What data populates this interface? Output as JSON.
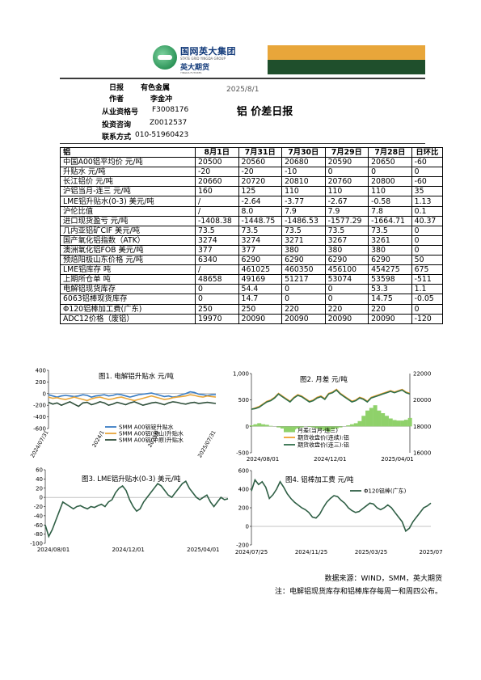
{
  "header": {
    "logo_cn": "国网英大集团",
    "logo_en": "STATE GRID YINGDA GROUP",
    "logo_sub_cn": "英大期货",
    "logo_sub_en": "YINGDA FUTURES",
    "accent_top": "#e8a63a",
    "accent_bottom": "#1f4f2c"
  },
  "meta": {
    "report_label": "日报",
    "category": "有色金属",
    "author_label": "作者",
    "author": "李金冲",
    "license_label": "从业资格号",
    "license": "F3008176",
    "invest_label": "投资咨询",
    "invest": "Z0012537",
    "contact_label": "联系方式",
    "contact": "010-51960423",
    "date": "2025/8/1",
    "title": "铝 价差日报"
  },
  "table": {
    "headers": [
      "铝",
      "8月1日",
      "7月31日",
      "7月30日",
      "7月29日",
      "7月28日",
      "日环比"
    ],
    "rows": [
      [
        "中国A00铝平均价 元/吨",
        "20500",
        "20560",
        "20680",
        "20590",
        "20650",
        "-60"
      ],
      [
        "升贴水 元/吨",
        "-20",
        "-20",
        "-10",
        "0",
        "0",
        "0"
      ],
      [
        "长江铝价 元/吨",
        "20660",
        "20720",
        "20810",
        "20760",
        "20800",
        "-60"
      ],
      [
        "沪铝当月-连三 元/吨",
        "160",
        "125",
        "110",
        "110",
        "110",
        "35"
      ],
      [
        "LME铝升贴水(0-3) 美元/吨",
        "/",
        "-2.64",
        "-3.77",
        "-2.67",
        "-0.58",
        "1.13"
      ],
      [
        "沪伦比值",
        "/",
        "8.0",
        "7.9",
        "7.9",
        "7.8",
        "0.1"
      ],
      [
        "进口现货盈亏 元/吨",
        "-1408.38",
        "-1448.75",
        "-1486.53",
        "-1577.29",
        "-1664.71",
        "40.37"
      ],
      [
        "几内亚铝矿CIF 美元/吨",
        "73.5",
        "73.5",
        "73.5",
        "73.5",
        "73.5",
        "0"
      ],
      [
        "国产氧化铝指数（ATK）",
        "3274",
        "3274",
        "3271",
        "3267",
        "3261",
        "0"
      ],
      [
        "澳洲氧化铝FOB 美元/吨",
        "377",
        "377",
        "380",
        "380",
        "380",
        "0"
      ],
      [
        "预焙阳极山东价格 元/吨",
        "6340",
        "6290",
        "6290",
        "6290",
        "6290",
        "50"
      ],
      [
        "LME铝库存 吨",
        "/",
        "461025",
        "460350",
        "456100",
        "454275",
        "675"
      ],
      [
        "上期所仓单 吨",
        "48658",
        "49169",
        "51217",
        "53074",
        "53598",
        "-511"
      ],
      [
        "电解铝现货库存",
        "0",
        "54.4",
        "0",
        "0",
        "53.3",
        "1.1"
      ],
      [
        "6063铝棒现货库存",
        "0",
        "14.7",
        "0",
        "0",
        "14.75",
        "-0.05"
      ],
      [
        "Φ120铝棒加工费(广东)",
        "250",
        "250",
        "220",
        "220",
        "220",
        "0"
      ],
      [
        "ADC12价格（废铝）",
        "19970",
        "20090",
        "20090",
        "20090",
        "20090",
        "-120"
      ]
    ]
  },
  "chart_data": [
    {
      "type": "line",
      "title": "图1. 电解铝升贴水 元/吨",
      "ylim": [
        -600,
        400
      ],
      "yticks": [
        "400",
        "200",
        "0",
        "-200",
        "-400",
        "-600"
      ],
      "xticks": [
        "2024/07/31",
        "2024/1",
        "2025/1",
        "2025/07/31"
      ],
      "legend_position": "bottom-right",
      "series": [
        {
          "name": "SMM A00铝锭升贴水",
          "color": "#3a7dc4",
          "values": [
            -20,
            -40,
            -60,
            -40,
            -30,
            -40,
            -50,
            -40,
            -20,
            -30,
            -60,
            -40,
            -30,
            -20,
            -40,
            -30,
            -10,
            -20,
            -40,
            -60,
            -40,
            -20,
            -10,
            0,
            10,
            -10,
            -30,
            -50,
            -40,
            -60,
            -50,
            -20,
            0,
            30,
            20,
            -10,
            -20,
            -30,
            -20,
            -20
          ]
        },
        {
          "name": "SMM A00铝(佛山)升贴水",
          "color": "#e8a63a",
          "values": [
            -60,
            -80,
            -70,
            -90,
            -100,
            -80,
            -60,
            -80,
            -100,
            -120,
            -90,
            -70,
            -60,
            -80,
            -100,
            -90,
            -70,
            -60,
            -80,
            -100,
            -120,
            -100,
            -80,
            -60,
            -40,
            -60,
            -80,
            -100,
            -90,
            -70,
            -60,
            -50,
            -40,
            -20,
            -30,
            -50,
            -60,
            -40,
            -50,
            -60
          ]
        },
        {
          "name": "SMM A00铝(中原)升贴水",
          "color": "#2f4f3a",
          "values": [
            -150,
            -180,
            -160,
            -200,
            -170,
            -140,
            -180,
            -220,
            -160,
            -150,
            -190,
            -170,
            -140,
            -160,
            -200,
            -180,
            -150,
            -170,
            -190,
            -160,
            -140,
            -170,
            -200,
            -180,
            -160,
            -150,
            -170,
            -190,
            -160,
            -140,
            -150,
            -170,
            -180,
            -160,
            -150,
            -170,
            -160,
            -150,
            -160,
            -170
          ]
        }
      ]
    },
    {
      "type": "line",
      "title": "图2. 月差 元/吨",
      "ylim": [
        -500,
        1000
      ],
      "yticks": [
        "1,000",
        "500",
        "0",
        "-500"
      ],
      "y2lim": [
        16000,
        22000
      ],
      "y2ticks": [
        "22000",
        "20000",
        "18000",
        "16000"
      ],
      "xticks": [
        "2024/08/01",
        "2024/12/01",
        "2025/04/01"
      ],
      "legend_position": "bottom-right",
      "series": [
        {
          "name": "月差(当月-连三)",
          "color": "#8fd16a",
          "kind": "area",
          "values": [
            20,
            40,
            60,
            40,
            30,
            10,
            0,
            -20,
            -40,
            -60,
            -80,
            -60,
            -40,
            -20,
            0,
            -10,
            -20,
            -40,
            -60,
            -80,
            -100,
            -60,
            -40,
            -20,
            0,
            20,
            40,
            60,
            100,
            200,
            300,
            350,
            400,
            300,
            250,
            200,
            150,
            120,
            110,
            110,
            125,
            160
          ]
        },
        {
          "name": "期货收盘价(连续):铝",
          "color": "#f0a030",
          "axis": "y2",
          "values": [
            19300,
            19400,
            19500,
            19700,
            19900,
            20000,
            20200,
            20500,
            20300,
            20100,
            19900,
            20200,
            20400,
            20300,
            20100,
            19900,
            20000,
            20200,
            20300,
            20100,
            20500,
            20600,
            20800,
            20500,
            20300,
            20100,
            19900,
            20000,
            20200,
            20100,
            19900,
            20200,
            20300,
            20400,
            20500,
            20600,
            20700,
            20600,
            20700,
            20800,
            20600,
            20500
          ]
        },
        {
          "name": "期货收盘价(连三):铝",
          "color": "#2f6f4a",
          "axis": "y2",
          "values": [
            19300,
            19350,
            19450,
            19650,
            19850,
            19950,
            20150,
            20450,
            20250,
            20050,
            19850,
            20150,
            20350,
            20250,
            20050,
            19850,
            19950,
            20150,
            20250,
            20050,
            20450,
            20550,
            20750,
            20450,
            20250,
            20050,
            19850,
            19950,
            20150,
            20050,
            19850,
            20150,
            20250,
            20350,
            20450,
            20550,
            20650,
            20550,
            20650,
            20750,
            20550,
            20450
          ]
        }
      ]
    },
    {
      "type": "line",
      "title": "图3. LME铝升贴水(0-3) 美元/吨",
      "ylim": [
        -100,
        60
      ],
      "yticks": [
        "60",
        "40",
        "20",
        "0",
        "-20",
        "-40",
        "-60",
        "-80",
        "-100"
      ],
      "xticks": [
        "2024/08/01",
        "2024/12/01",
        "2025/04/01"
      ],
      "series": [
        {
          "name": "LME铝升贴水(0-3)",
          "color": "#2f5f45",
          "values": [
            -60,
            -85,
            -70,
            -50,
            -30,
            -10,
            -15,
            -20,
            -25,
            -20,
            -18,
            -22,
            -25,
            -20,
            -22,
            -18,
            -15,
            -20,
            -10,
            -5,
            10,
            20,
            25,
            15,
            -5,
            -20,
            -30,
            -25,
            -10,
            0,
            10,
            20,
            30,
            25,
            15,
            5,
            0,
            10,
            20,
            30,
            35,
            20,
            10,
            0,
            -5,
            0,
            5,
            -10,
            -20,
            -10,
            0,
            -5,
            -3
          ]
        }
      ]
    },
    {
      "type": "line",
      "title": "图4. 铝棒加工费 元/吨",
      "ylim": [
        -200,
        600
      ],
      "yticks": [
        "600",
        "400",
        "200",
        "0",
        "-200"
      ],
      "xticks": [
        "2024/07/25",
        "2024/11/25",
        "2025/03/25",
        "2025/07"
      ],
      "legend_position": "top-right",
      "series": [
        {
          "name": "Φ120铝棒(广东)",
          "color": "#2f5f45",
          "values": [
            380,
            500,
            450,
            480,
            420,
            300,
            340,
            400,
            480,
            420,
            350,
            300,
            260,
            230,
            200,
            180,
            150,
            100,
            90,
            130,
            200,
            260,
            300,
            330,
            320,
            280,
            250,
            200,
            170,
            150,
            160,
            190,
            220,
            250,
            240,
            200,
            180,
            200,
            230,
            200,
            150,
            100,
            50,
            -50,
            -20,
            50,
            100,
            150,
            200,
            220,
            250
          ]
        }
      ]
    }
  ],
  "footer": {
    "source": "数据来源：WIND，SMM，英大期货",
    "note": "注：电解铝现货库存和铝棒库存每周一和周四公布。"
  }
}
